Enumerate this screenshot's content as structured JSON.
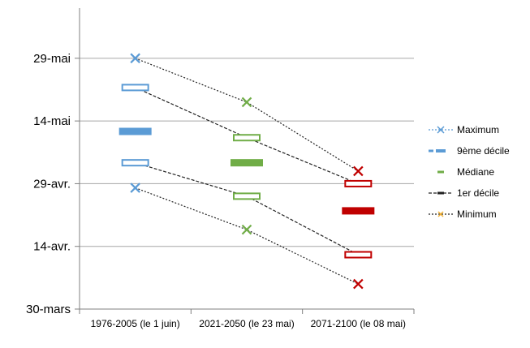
{
  "chart_data": {
    "type": "line",
    "title": "",
    "xlabel": "",
    "ylabel": "",
    "categories": [
      "1976-2005 (le 1 juin)",
      "2021-2050 (le 23 mai)",
      "2071-2100 (le 08 mai)"
    ],
    "y_axis": {
      "ticks": [
        "30-mars",
        "14-avr.",
        "29-avr.",
        "14-mai",
        "29-mai"
      ],
      "tick_values": [
        0,
        15,
        30,
        45,
        60
      ],
      "ylim": [
        0,
        72
      ],
      "unit": "days since 30-mars"
    },
    "series": [
      {
        "name": "Maximum",
        "marker": "x",
        "line": "dotted",
        "values": [
          60,
          49.5,
          33
        ]
      },
      {
        "name": "9ème décile",
        "marker": "open-bar",
        "line": "dashed",
        "values": [
          53,
          41,
          30
        ]
      },
      {
        "name": "Médiane",
        "marker": "filled-bar",
        "line": "none",
        "values": [
          42.5,
          35,
          23.5
        ]
      },
      {
        "name": "1er décile",
        "marker": "open-bar",
        "line": "dashed",
        "values": [
          35,
          27,
          13
        ]
      },
      {
        "name": "Minimum",
        "marker": "x",
        "line": "dotted",
        "values": [
          29,
          19,
          6
        ]
      }
    ],
    "category_colors": [
      "#5b9bd5",
      "#70ad47",
      "#c00000"
    ],
    "legend_position": "right",
    "grid": true
  }
}
